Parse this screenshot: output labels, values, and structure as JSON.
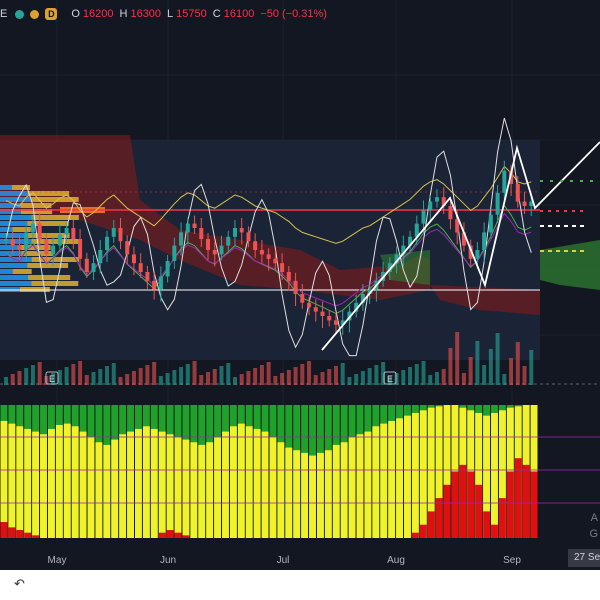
{
  "legend": {
    "symbol_fragment": "E",
    "badge": "D",
    "open_label": "O",
    "open": "16200",
    "high_label": "H",
    "high": "16300",
    "low_label": "L",
    "low": "15750",
    "close_label": "C",
    "close": "16100",
    "change": "−50 (−0.31%)"
  },
  "x_axis": {
    "labels": [
      "May",
      "Jun",
      "Jul",
      "Aug",
      "Sep"
    ]
  },
  "crosshair_date": "27 Se",
  "earnings_marker": "E",
  "side_text": {
    "a": "A",
    "g": "G"
  },
  "bottom_icon": "undo-icon",
  "colors": {
    "up": "#26a69a",
    "down": "#ef5350",
    "bg": "#131722",
    "cloud_bear": "#8b1a1a",
    "cloud_bull": "#2e7d32",
    "osc_green": "#1fa12a",
    "osc_yellow": "#f2f22a",
    "osc_red": "#e01010"
  },
  "chart_data": {
    "type": "candlestick",
    "ohlc_last": {
      "open": 16200,
      "high": 16300,
      "low": 15750,
      "close": 16100,
      "change": -50,
      "change_pct": -0.31
    },
    "note_series": "price path estimated from image, relative scale",
    "close_relative": [
      0.55,
      0.52,
      0.5,
      0.58,
      0.62,
      0.55,
      0.48,
      0.52,
      0.57,
      0.6,
      0.55,
      0.46,
      0.4,
      0.44,
      0.5,
      0.56,
      0.6,
      0.54,
      0.48,
      0.44,
      0.4,
      0.36,
      0.32,
      0.38,
      0.45,
      0.52,
      0.58,
      0.62,
      0.6,
      0.55,
      0.5,
      0.48,
      0.52,
      0.56,
      0.6,
      0.58,
      0.54,
      0.5,
      0.48,
      0.46,
      0.44,
      0.4,
      0.36,
      0.3,
      0.26,
      0.24,
      0.22,
      0.2,
      0.18,
      0.16,
      0.18,
      0.22,
      0.26,
      0.3,
      0.32,
      0.36,
      0.4,
      0.44,
      0.48,
      0.52,
      0.56,
      0.62,
      0.68,
      0.72,
      0.74,
      0.7,
      0.64,
      0.58,
      0.52,
      0.46,
      0.5,
      0.58,
      0.66,
      0.76,
      0.86,
      0.8,
      0.72,
      0.7,
      0.72
    ],
    "oscillator_yellow_pct": [
      88,
      86,
      84,
      82,
      80,
      78,
      82,
      85,
      86,
      84,
      80,
      76,
      72,
      70,
      74,
      78,
      80,
      82,
      84,
      82,
      80,
      78,
      76,
      74,
      72,
      70,
      72,
      76,
      80,
      84,
      86,
      84,
      82,
      80,
      76,
      72,
      68,
      66,
      64,
      62,
      64,
      66,
      70,
      72,
      76,
      78,
      80,
      84,
      86,
      88,
      90,
      92,
      94,
      96,
      98,
      99,
      100,
      100,
      98,
      96,
      94,
      92,
      94,
      96,
      98,
      99,
      100,
      100
    ],
    "oscillator_red_pct": [
      12,
      8,
      6,
      4,
      2,
      0,
      0,
      0,
      0,
      0,
      0,
      0,
      0,
      0,
      0,
      0,
      0,
      0,
      0,
      0,
      4,
      6,
      4,
      2,
      0,
      0,
      0,
      0,
      0,
      0,
      0,
      0,
      0,
      0,
      0,
      0,
      0,
      0,
      0,
      0,
      0,
      0,
      0,
      0,
      0,
      0,
      0,
      0,
      0,
      0,
      0,
      0,
      4,
      10,
      20,
      30,
      40,
      50,
      55,
      50,
      40,
      20,
      10,
      30,
      50,
      60,
      55,
      50
    ]
  }
}
